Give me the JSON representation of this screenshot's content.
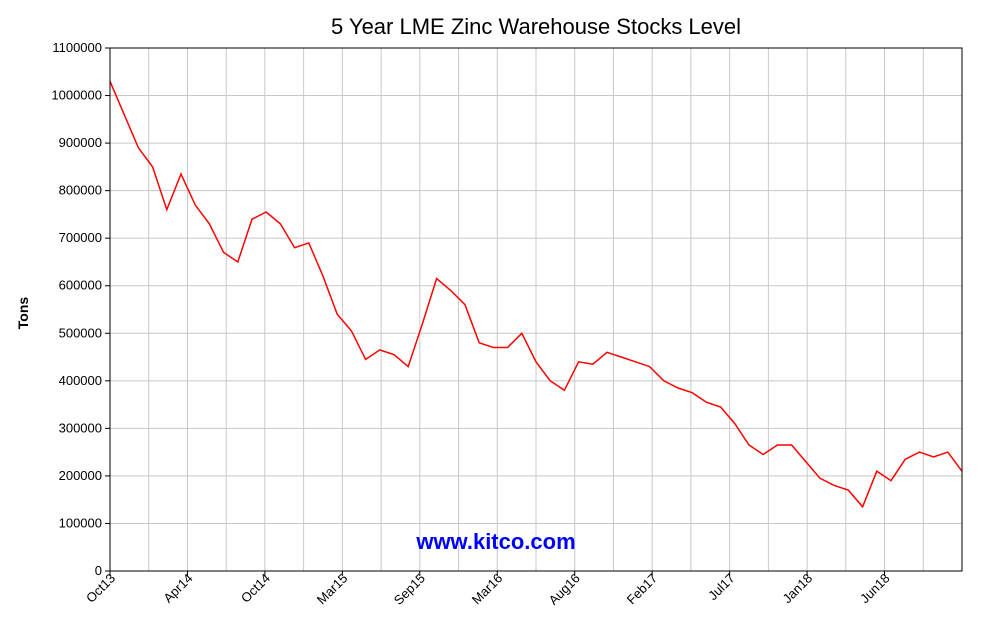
{
  "chart_data": {
    "type": "line",
    "title": "5 Year LME Zinc Warehouse Stocks Level",
    "ylabel": "Tons",
    "xlabel": "",
    "ylim": [
      0,
      1100000
    ],
    "yticks": [
      0,
      100000,
      200000,
      300000,
      400000,
      500000,
      600000,
      700000,
      800000,
      900000,
      1000000,
      1100000
    ],
    "xtick_labels": [
      "Oct13",
      "Apr14",
      "Oct14",
      "Mar15",
      "Sep15",
      "Mar16",
      "Aug16",
      "Feb17",
      "Jul17",
      "Jan18",
      "Jun18"
    ],
    "grid": true,
    "line_color": "#ff0000",
    "watermark": "www.kitco.com",
    "series": [
      {
        "x": [
          "2013-10",
          "2013-11",
          "2013-12",
          "2014-01",
          "2014-02",
          "2014-03",
          "2014-04",
          "2014-05",
          "2014-06",
          "2014-07",
          "2014-08",
          "2014-09",
          "2014-10",
          "2014-11",
          "2014-12",
          "2015-01",
          "2015-02",
          "2015-03",
          "2015-04",
          "2015-05",
          "2015-06",
          "2015-07",
          "2015-08",
          "2015-09",
          "2015-10",
          "2015-11",
          "2015-12",
          "2016-01",
          "2016-02",
          "2016-03",
          "2016-04",
          "2016-05",
          "2016-06",
          "2016-07",
          "2016-08",
          "2016-09",
          "2016-10",
          "2016-11",
          "2016-12",
          "2017-01",
          "2017-02",
          "2017-03",
          "2017-04",
          "2017-05",
          "2017-06",
          "2017-07",
          "2017-08",
          "2017-09",
          "2017-10",
          "2017-11",
          "2017-12",
          "2018-01",
          "2018-02",
          "2018-03",
          "2018-04",
          "2018-05",
          "2018-06",
          "2018-07",
          "2018-08",
          "2018-09",
          "2018-10"
        ],
        "values": [
          1030000,
          960000,
          890000,
          850000,
          760000,
          835000,
          770000,
          730000,
          670000,
          650000,
          740000,
          755000,
          730000,
          680000,
          690000,
          620000,
          540000,
          505000,
          445000,
          465000,
          455000,
          430000,
          520000,
          615000,
          590000,
          560000,
          480000,
          470000,
          470000,
          500000,
          440000,
          400000,
          380000,
          440000,
          435000,
          460000,
          450000,
          440000,
          430000,
          400000,
          385000,
          375000,
          355000,
          345000,
          310000,
          265000,
          245000,
          265000,
          265000,
          230000,
          195000,
          180000,
          170000,
          135000,
          210000,
          190000,
          235000,
          250000,
          240000,
          250000,
          210000
        ]
      }
    ]
  }
}
